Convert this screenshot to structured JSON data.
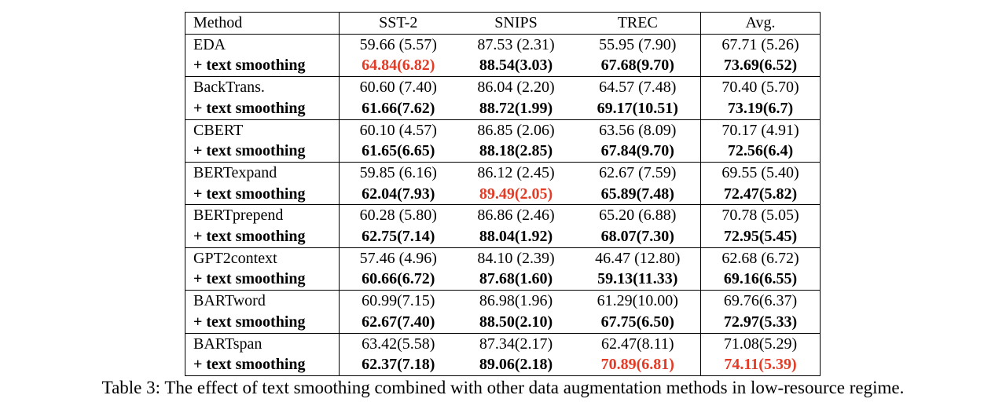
{
  "colors": {
    "highlight_red": "#e33b26",
    "text": "#000000",
    "border": "#000000",
    "background": "#ffffff"
  },
  "caption": "Table 3: The effect of text smoothing combined with other data augmentation methods in low-resource regime.",
  "table": {
    "columns": [
      "Method",
      "SST-2",
      "SNIPS",
      "TREC",
      "Avg."
    ],
    "smoothing_label": "+ text smoothing",
    "groups": [
      {
        "rows": [
          {
            "method": "EDA",
            "bold": false,
            "values": [
              "59.66 (5.57)",
              "87.53 (2.31)",
              "55.95 (7.90)",
              "67.71 (5.26)"
            ],
            "red_cols": []
          },
          {
            "method": "+ text smoothing",
            "bold": true,
            "values": [
              "64.84(6.82)",
              "88.54(3.03)",
              "67.68(9.70)",
              "73.69(6.52)"
            ],
            "red_cols": [
              0
            ]
          }
        ]
      },
      {
        "rows": [
          {
            "method": "BackTrans.",
            "bold": false,
            "values": [
              "60.60 (7.40)",
              "86.04 (2.20)",
              "64.57 (7.48)",
              "70.40 (5.70)"
            ],
            "red_cols": []
          },
          {
            "method": "+ text smoothing",
            "bold": true,
            "values": [
              "61.66(7.62)",
              "88.72(1.99)",
              "69.17(10.51)",
              "73.19(6.7)"
            ],
            "red_cols": []
          }
        ]
      },
      {
        "rows": [
          {
            "method": "CBERT",
            "bold": false,
            "values": [
              "60.10 (4.57)",
              "86.85 (2.06)",
              "63.56 (8.09)",
              "70.17 (4.91)"
            ],
            "red_cols": []
          },
          {
            "method": "+ text smoothing",
            "bold": true,
            "values": [
              "61.65(6.65)",
              "88.18(2.85)",
              "67.84(9.70)",
              "72.56(6.4)"
            ],
            "red_cols": []
          }
        ]
      },
      {
        "rows": [
          {
            "method": "BERTexpand",
            "bold": false,
            "values": [
              "59.85 (6.16)",
              "86.12 (2.45)",
              "62.67 (7.59)",
              "69.55 (5.40)"
            ],
            "red_cols": []
          },
          {
            "method": "+ text smoothing",
            "bold": true,
            "values": [
              "62.04(7.93)",
              "89.49(2.05)",
              "65.89(7.48)",
              "72.47(5.82)"
            ],
            "red_cols": [
              1
            ]
          }
        ]
      },
      {
        "rows": [
          {
            "method": "BERTprepend",
            "bold": false,
            "values": [
              "60.28 (5.80)",
              "86.86 (2.46)",
              "65.20 (6.88)",
              "70.78 (5.05)"
            ],
            "red_cols": []
          },
          {
            "method": "+ text smoothing",
            "bold": true,
            "values": [
              "62.75(7.14)",
              "88.04(1.92)",
              "68.07(7.30)",
              "72.95(5.45)"
            ],
            "red_cols": []
          }
        ]
      },
      {
        "rows": [
          {
            "method": "GPT2context",
            "bold": false,
            "values": [
              "57.46 (4.96)",
              "84.10 (2.39)",
              "46.47 (12.80)",
              "62.68 (6.72)"
            ],
            "red_cols": []
          },
          {
            "method": "+ text smoothing",
            "bold": true,
            "values": [
              "60.66(6.72)",
              "87.68(1.60)",
              "59.13(11.33)",
              "69.16(6.55)"
            ],
            "red_cols": []
          }
        ]
      },
      {
        "rows": [
          {
            "method": "BARTword",
            "bold": false,
            "values": [
              "60.99(7.15)",
              "86.98(1.96)",
              "61.29(10.00)",
              "69.76(6.37)"
            ],
            "red_cols": []
          },
          {
            "method": "+ text smoothing",
            "bold": true,
            "values": [
              "62.67(7.40)",
              "88.50(2.10)",
              "67.75(6.50)",
              "72.97(5.33)"
            ],
            "red_cols": []
          }
        ]
      },
      {
        "rows": [
          {
            "method": "BARTspan",
            "bold": false,
            "values": [
              "63.42(5.58)",
              "87.34(2.17)",
              "62.47(8.11)",
              "71.08(5.29)"
            ],
            "red_cols": []
          },
          {
            "method": "+ text smoothing",
            "bold": true,
            "values": [
              "62.37(7.18)",
              "89.06(2.18)",
              "70.89(6.81)",
              "74.11(5.39)"
            ],
            "red_cols": [
              2,
              3
            ]
          }
        ]
      }
    ]
  }
}
